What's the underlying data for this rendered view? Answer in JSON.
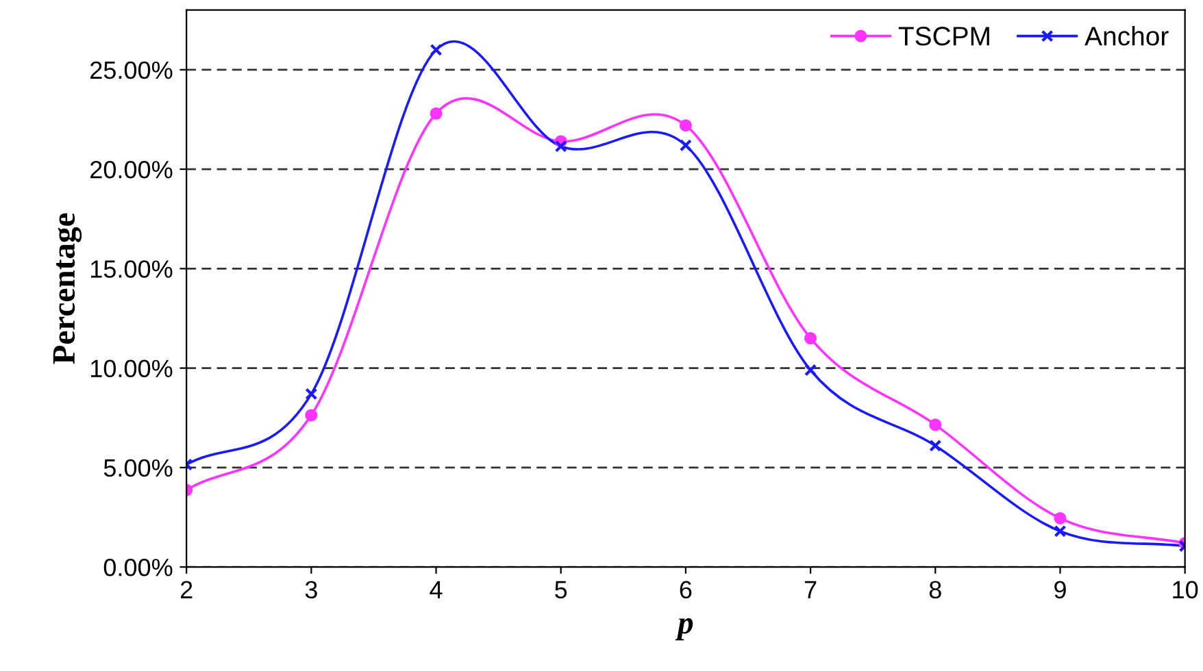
{
  "chart_data": {
    "type": "line",
    "xlabel": "p",
    "ylabel": "Percentage",
    "x": [
      2,
      3,
      4,
      5,
      6,
      7,
      8,
      9,
      10
    ],
    "series": [
      {
        "name": "TSCPM",
        "color": "#ff33ff",
        "marker": "circle",
        "values": [
          3.87,
          7.63,
          22.8,
          21.4,
          22.2,
          11.5,
          7.15,
          2.45,
          1.2
        ]
      },
      {
        "name": "Anchor",
        "color": "#1a1aff",
        "marker": "cross",
        "values": [
          5.15,
          8.7,
          26.0,
          21.15,
          21.2,
          9.9,
          6.1,
          1.8,
          1.05
        ]
      }
    ],
    "xlim": [
      2,
      10
    ],
    "ylim": [
      0,
      28
    ],
    "xticks": [
      2,
      3,
      4,
      5,
      6,
      7,
      8,
      9,
      10
    ],
    "yticks": [
      {
        "value": 0,
        "label": "0.00%"
      },
      {
        "value": 5,
        "label": "5.00%"
      },
      {
        "value": 10,
        "label": "10.00%"
      },
      {
        "value": 15,
        "label": "15.00%"
      },
      {
        "value": 20,
        "label": "20.00%"
      },
      {
        "value": 25,
        "label": "25.00%"
      }
    ],
    "grid": "y",
    "legend": "top right",
    "line_style": "solid"
  }
}
